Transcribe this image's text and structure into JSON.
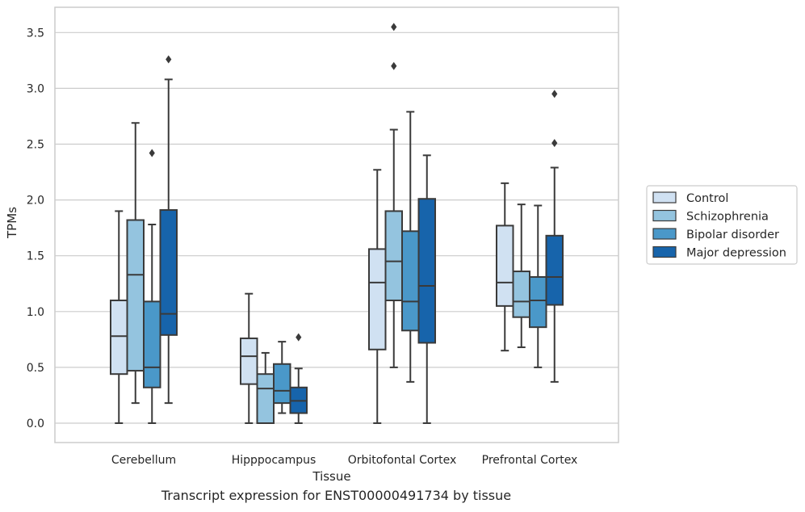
{
  "caption": "Transcript expression for ENST00000491734 by tissue",
  "colors": {
    "Control": "#d0e1f2",
    "Schizophrenia": "#94c4df",
    "Bipolar disorder": "#4a98c9",
    "Major depression": "#1764ab",
    "grid": "#cccccc",
    "line": "#3a3a3a"
  },
  "chart_data": {
    "type": "box",
    "xlabel": "Tissue",
    "ylabel": "TPMs",
    "ylim": [
      -0.17,
      3.72
    ],
    "yticks": [
      "0.0",
      "0.5",
      "1.0",
      "1.5",
      "2.0",
      "2.5",
      "3.0",
      "3.5"
    ],
    "categories": [
      "Cerebellum",
      "Hipppocampus",
      "Orbitofontal Cortex",
      "Prefrontal Cortex"
    ],
    "grid": "horizontal",
    "legend_position": "right",
    "series": [
      {
        "name": "Control",
        "boxes": [
          {
            "whislo": 0.0,
            "q1": 0.44,
            "median": 0.78,
            "q3": 1.1,
            "whishi": 1.9,
            "fliers": []
          },
          {
            "whislo": 0.0,
            "q1": 0.35,
            "median": 0.6,
            "q3": 0.76,
            "whishi": 1.16,
            "fliers": []
          },
          {
            "whislo": 0.0,
            "q1": 0.66,
            "median": 1.26,
            "q3": 1.56,
            "whishi": 2.27,
            "fliers": []
          },
          {
            "whislo": 0.65,
            "q1": 1.05,
            "median": 1.26,
            "q3": 1.77,
            "whishi": 2.15,
            "fliers": []
          }
        ]
      },
      {
        "name": "Schizophrenia",
        "boxes": [
          {
            "whislo": 0.18,
            "q1": 0.47,
            "median": 1.33,
            "q3": 1.82,
            "whishi": 2.69,
            "fliers": []
          },
          {
            "whislo": 0.0,
            "q1": 0.0,
            "median": 0.31,
            "q3": 0.44,
            "whishi": 0.63,
            "fliers": []
          },
          {
            "whislo": 0.5,
            "q1": 1.1,
            "median": 1.45,
            "q3": 1.9,
            "whishi": 2.63,
            "fliers": [
              3.2,
              3.55
            ]
          },
          {
            "whislo": 0.68,
            "q1": 0.95,
            "median": 1.09,
            "q3": 1.36,
            "whishi": 1.96,
            "fliers": []
          }
        ]
      },
      {
        "name": "Bipolar disorder",
        "boxes": [
          {
            "whislo": 0.0,
            "q1": 0.32,
            "median": 0.5,
            "q3": 1.09,
            "whishi": 1.78,
            "fliers": [
              2.42
            ]
          },
          {
            "whislo": 0.09,
            "q1": 0.18,
            "median": 0.29,
            "q3": 0.53,
            "whishi": 0.73,
            "fliers": []
          },
          {
            "whislo": 0.37,
            "q1": 0.83,
            "median": 1.09,
            "q3": 1.72,
            "whishi": 2.79,
            "fliers": []
          },
          {
            "whislo": 0.5,
            "q1": 0.86,
            "median": 1.1,
            "q3": 1.31,
            "whishi": 1.95,
            "fliers": []
          }
        ]
      },
      {
        "name": "Major depression",
        "boxes": [
          {
            "whislo": 0.18,
            "q1": 0.79,
            "median": 0.98,
            "q3": 1.91,
            "whishi": 3.08,
            "fliers": [
              3.26
            ]
          },
          {
            "whislo": 0.0,
            "q1": 0.09,
            "median": 0.2,
            "q3": 0.32,
            "whishi": 0.49,
            "fliers": [
              0.77
            ]
          },
          {
            "whislo": 0.0,
            "q1": 0.72,
            "median": 1.23,
            "q3": 2.01,
            "whishi": 2.4,
            "fliers": []
          },
          {
            "whislo": 0.37,
            "q1": 1.06,
            "median": 1.31,
            "q3": 1.68,
            "whishi": 2.29,
            "fliers": [
              2.51,
              2.95
            ]
          }
        ]
      }
    ]
  }
}
